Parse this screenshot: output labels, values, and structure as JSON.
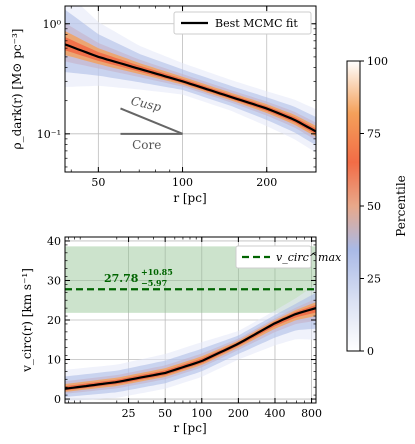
{
  "chart_data": [
    {
      "type": "line",
      "panel": "top",
      "xlabel": "r [pc]",
      "ylabel": "ρ_dark(r) [M⊙ pc⁻³]",
      "x_scale": "log",
      "y_scale": "log",
      "xlim": [
        38,
        300
      ],
      "ylim": [
        0.045,
        1.45
      ],
      "x_ticks": [
        {
          "value": 50,
          "label": "50"
        },
        {
          "value": 100,
          "label": "100"
        },
        {
          "value": 200,
          "label": "200"
        }
      ],
      "y_ticks": [
        {
          "value": 1.0,
          "label": "10⁰"
        },
        {
          "value": 0.1,
          "label": "10⁻¹"
        }
      ],
      "grid": true,
      "legend": {
        "position": "top-right",
        "entries": [
          "Best MCMC fit"
        ]
      },
      "series": [
        {
          "name": "Best MCMC fit",
          "x": [
            38,
            50,
            70,
            100,
            150,
            200,
            250,
            300
          ],
          "y": [
            0.65,
            0.5,
            0.39,
            0.3,
            0.215,
            0.17,
            0.135,
            0.105
          ]
        }
      ],
      "band": {
        "x": [
          38,
          50,
          70,
          100,
          150,
          200,
          250,
          300
        ],
        "y_low": [
          0.52,
          0.43,
          0.35,
          0.28,
          0.2,
          0.155,
          0.122,
          0.094
        ],
        "y_high": [
          0.86,
          0.6,
          0.44,
          0.33,
          0.235,
          0.186,
          0.15,
          0.118
        ]
      },
      "annotations": [
        {
          "text": "Cusp",
          "x1": 60,
          "y1": 0.17,
          "x2": 100,
          "y2": 0.1
        },
        {
          "text": "Core",
          "x1": 60,
          "y1": 0.1,
          "x2": 100,
          "y2": 0.1
        }
      ]
    },
    {
      "type": "line",
      "panel": "bottom",
      "xlabel": "r [pc]",
      "ylabel": "v_circ(r) [km s⁻¹]",
      "x_scale": "log",
      "xlim": [
        7.5,
        870
      ],
      "ylim": [
        -1,
        41
      ],
      "x_ticks": [
        {
          "value": 25,
          "label": "25"
        },
        {
          "value": 50,
          "label": "50"
        },
        {
          "value": 100,
          "label": "100"
        },
        {
          "value": 200,
          "label": "200"
        },
        {
          "value": 400,
          "label": "400"
        },
        {
          "value": 800,
          "label": "800"
        }
      ],
      "y_ticks": [
        {
          "value": 0,
          "label": "0"
        },
        {
          "value": 10,
          "label": "10"
        },
        {
          "value": 20,
          "label": "20"
        },
        {
          "value": 30,
          "label": "30"
        },
        {
          "value": 40,
          "label": "40"
        }
      ],
      "grid": true,
      "legend": {
        "position": "top-right",
        "entries": [
          "v_circ^max"
        ]
      },
      "series": [
        {
          "name": "v_circ^max",
          "x": [
            7.5,
            20,
            50,
            100,
            200,
            400,
            600,
            870
          ],
          "y": [
            2.6,
            4.3,
            6.6,
            9.6,
            14.0,
            19.2,
            21.6,
            23.0
          ]
        }
      ],
      "band": {
        "x": [
          7.5,
          20,
          50,
          100,
          200,
          400,
          600,
          870
        ],
        "y_low": [
          1.8,
          3.3,
          5.6,
          8.6,
          13.0,
          17.8,
          20.0,
          21.0
        ],
        "y_high": [
          3.8,
          5.4,
          7.8,
          10.8,
          14.8,
          20.0,
          22.6,
          24.5
        ]
      },
      "vmax": {
        "value": 27.78,
        "plus": 10.85,
        "minus": 5.97,
        "label": "27.78",
        "label_plus": "+10.85",
        "label_minus": "−5.97"
      }
    }
  ],
  "colorbar": {
    "label": "Percentile",
    "ticks": [
      {
        "value": 0,
        "label": "0"
      },
      {
        "value": 25,
        "label": "25"
      },
      {
        "value": 50,
        "label": "50"
      },
      {
        "value": 75,
        "label": "75"
      },
      {
        "value": 100,
        "label": "100"
      }
    ]
  },
  "colors": {
    "fit_line": "#000000",
    "vmax_line": "#006400",
    "vmax_band": "#8fc08f",
    "band_core": "#f26c46",
    "band_mid": "#f4a05a",
    "band_outer": "#a9b9e6"
  }
}
